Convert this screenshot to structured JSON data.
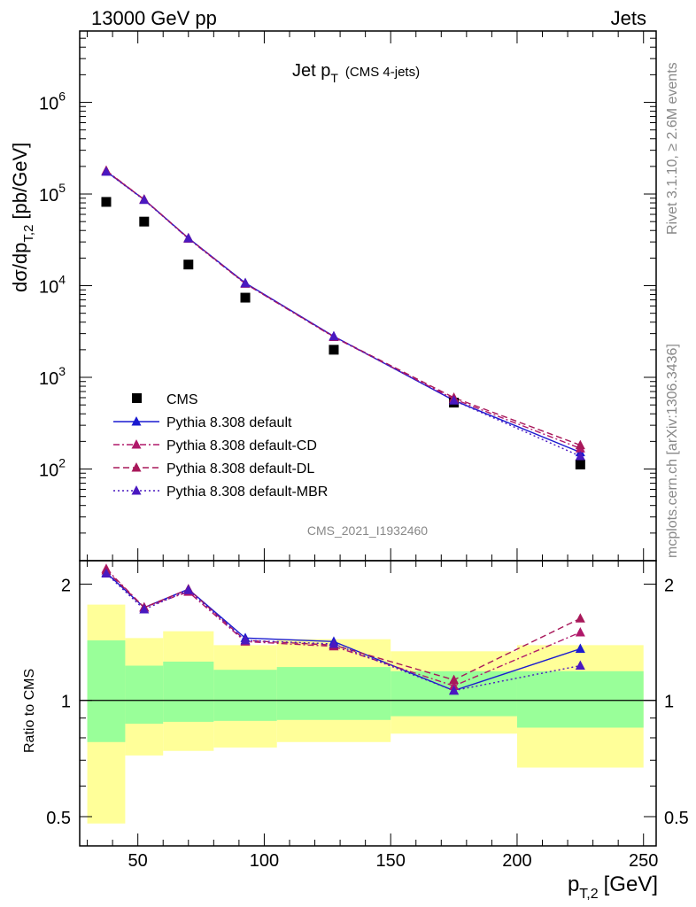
{
  "header": {
    "left": "13000 GeV pp",
    "right": "Jets"
  },
  "side_labels": {
    "top": "Rivet 3.1.10, ≥ 2.6M events",
    "bottom": "mcplots.cern.ch [arXiv:1306.3436]"
  },
  "chart_data": [
    {
      "type": "scatter",
      "title_main": "Jet p",
      "title_sub": "T",
      "title_extra": "(CMS 4-jets)",
      "ylabel_main": "dσ/dp",
      "ylabel_sub": "T,2",
      "ylabel_unit": "[pb/GeV]",
      "yscale": "log",
      "ylim": [
        10,
        6000000
      ],
      "xlim": [
        27,
        255
      ],
      "ytick_labels": [
        "10",
        "10",
        "10",
        "10",
        "10"
      ],
      "ytick_exponents": [
        "2",
        "3",
        "4",
        "5",
        "6"
      ],
      "ytick_values": [
        100,
        1000,
        10000,
        100000,
        1000000
      ],
      "watermark": "CMS_2021_I1932460",
      "legend_position": "bottom-left",
      "x": [
        37.5,
        52.5,
        70,
        92.5,
        127.5,
        175,
        225
      ],
      "series": [
        {
          "name": "CMS",
          "color": "#000000",
          "marker": "square",
          "line": "none",
          "values": [
            82000,
            50000,
            17000,
            7400,
            2000,
            530,
            112
          ]
        },
        {
          "name": "Pythia 8.308 default",
          "color": "#1a1ad0",
          "marker": "triangle",
          "line": "solid",
          "values": [
            176000,
            87000,
            33000,
            10700,
            2800,
            560,
            152
          ]
        },
        {
          "name": "Pythia 8.308 default-CD",
          "color": "#b0186a",
          "marker": "triangle",
          "line": "dashdot",
          "values": [
            180000,
            87000,
            32500,
            10500,
            2750,
            580,
            168
          ]
        },
        {
          "name": "Pythia 8.308 default-DL",
          "color": "#a8185a",
          "marker": "triangle",
          "line": "dashed",
          "values": [
            178000,
            87000,
            33000,
            10600,
            2780,
            600,
            182
          ]
        },
        {
          "name": "Pythia 8.308 default-MBR",
          "color": "#4a18c0",
          "marker": "triangle",
          "line": "dotted",
          "values": [
            175000,
            86000,
            32800,
            10600,
            2800,
            560,
            138
          ]
        }
      ]
    },
    {
      "type": "line",
      "ylabel": "Ratio to CMS",
      "yscale": "log",
      "ylim": [
        0.42,
        2.3
      ],
      "xlabel_main": "p",
      "xlabel_sub": "T,2",
      "xlabel_unit": "[GeV]",
      "xlim": [
        27,
        255
      ],
      "xticks": [
        50,
        100,
        150,
        200,
        250
      ],
      "ytick_labels": [
        "2",
        "1",
        "0.5"
      ],
      "ytick_values": [
        2,
        1,
        0.5
      ],
      "bins": [
        [
          30,
          45
        ],
        [
          45,
          60
        ],
        [
          60,
          80
        ],
        [
          80,
          105
        ],
        [
          105,
          150
        ],
        [
          150,
          200
        ],
        [
          200,
          250
        ]
      ],
      "band_inner": [
        [
          0.78,
          1.43
        ],
        [
          0.87,
          1.23
        ],
        [
          0.88,
          1.26
        ],
        [
          0.885,
          1.2
        ],
        [
          0.89,
          1.22
        ],
        [
          0.91,
          1.19
        ],
        [
          0.85,
          1.19
        ]
      ],
      "band_outer": [
        [
          0.48,
          1.77
        ],
        [
          0.72,
          1.45
        ],
        [
          0.74,
          1.51
        ],
        [
          0.755,
          1.39
        ],
        [
          0.78,
          1.44
        ],
        [
          0.82,
          1.34
        ],
        [
          0.67,
          1.39
        ]
      ],
      "x": [
        37.5,
        52.5,
        70,
        92.5,
        127.5,
        175,
        225
      ],
      "series": [
        {
          "name": "Pythia 8.308 default",
          "color": "#1a1ad0",
          "line": "solid",
          "values": [
            2.14,
            1.74,
            1.94,
            1.45,
            1.42,
            1.06,
            1.36
          ]
        },
        {
          "name": "Pythia 8.308 default-CD",
          "color": "#b0186a",
          "line": "dashdot",
          "values": [
            2.19,
            1.74,
            1.91,
            1.42,
            1.38,
            1.09,
            1.5
          ]
        },
        {
          "name": "Pythia 8.308 default-DL",
          "color": "#a8185a",
          "line": "dashed",
          "values": [
            2.17,
            1.74,
            1.94,
            1.43,
            1.39,
            1.13,
            1.63
          ]
        },
        {
          "name": "Pythia 8.308 default-MBR",
          "color": "#4a18c0",
          "line": "dotted",
          "values": [
            2.13,
            1.72,
            1.93,
            1.43,
            1.4,
            1.06,
            1.23
          ]
        }
      ]
    }
  ]
}
